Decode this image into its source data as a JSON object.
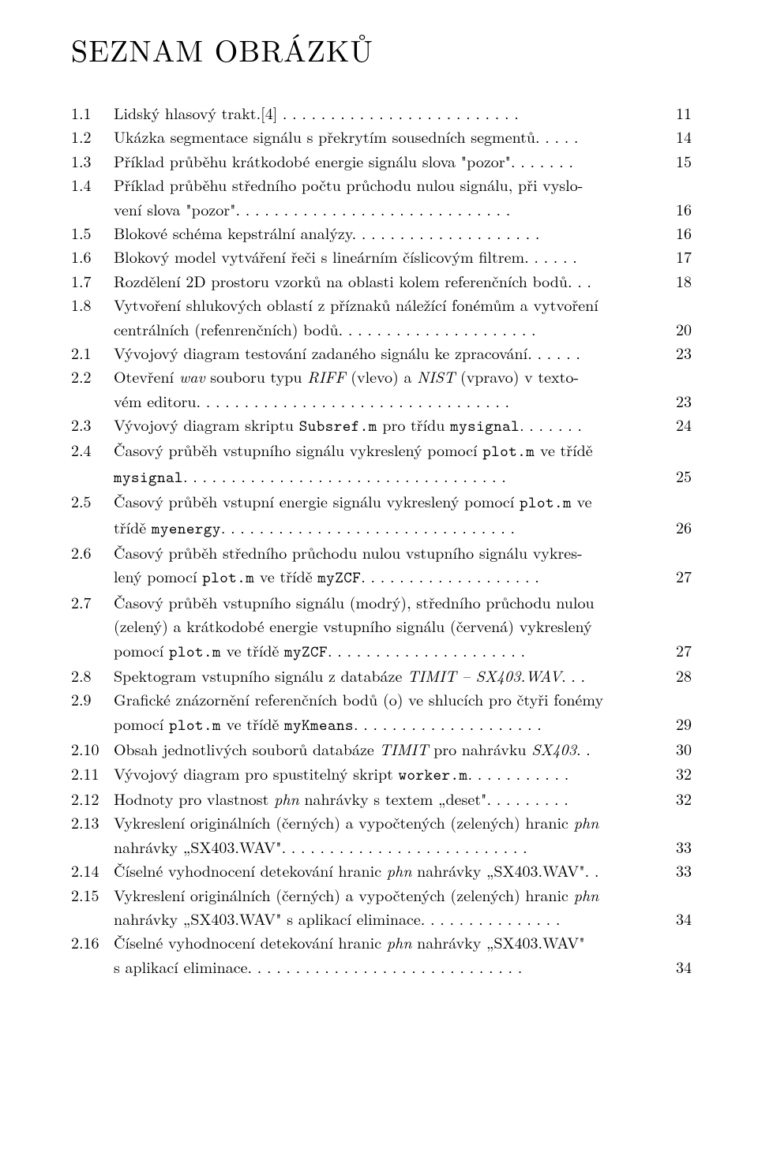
{
  "title": "SEZNAM OBRÁZKŮ",
  "entries": [
    {
      "num": "1.1",
      "lines": [
        "Lidský hlasový trakt.[4] . . . . . . . . . . . . . . . . . . . . . . . . ."
      ],
      "page": "11"
    },
    {
      "num": "1.2",
      "lines": [
        "Ukázka segmentace signálu s překrytím sousedních segmentů. . . . ."
      ],
      "page": "14"
    },
    {
      "num": "1.3",
      "lines": [
        "Příklad průběhu krátkodobé energie signálu slova \"pozor\". . . . . . ."
      ],
      "page": "15"
    },
    {
      "num": "1.4",
      "lines": [
        "Příklad průběhu středního počtu průchodu nulou signálu, při vyslo-",
        "vení slova \"pozor\". . . . . . . . . . . . . . . . . . . . . . . . . . . . ."
      ],
      "page": "16"
    },
    {
      "num": "1.5",
      "lines": [
        "Blokové schéma kepstrální analýzy. . . . . . . . . . . . . . . . . . . ."
      ],
      "page": "16"
    },
    {
      "num": "1.6",
      "lines": [
        "Blokový model vytváření řeči s lineárním číslicovým filtrem. . . . . ."
      ],
      "page": "17"
    },
    {
      "num": "1.7",
      "lines": [
        "Rozdělení 2D prostoru vzorků na oblasti kolem referenčních bodů. . ."
      ],
      "page": "18"
    },
    {
      "num": "1.8",
      "lines": [
        "Vytvoření shlukových oblastí z příznaků náležící fonémům a vytvoření",
        "centrálních (refenrenčních) bodů. . . . . . . . . . . . . . . . . . . . ."
      ],
      "page": "20"
    },
    {
      "num": "2.1",
      "lines": [
        "Vývojový diagram testování zadaného signálu ke zpracování. . . . . ."
      ],
      "page": "23"
    },
    {
      "num": "2.2",
      "lines": [
        "Otevření <i>wav</i> souboru typu <i>RIFF</i> (vlevo) a <i>NIST</i> (vpravo) v texto-",
        "vém editoru. . . . . . . . . . . . . . . . . . . . . . . . . . . . . . . . ."
      ],
      "page": "23"
    },
    {
      "num": "2.3",
      "lines": [
        "Vývojový diagram skriptu <m>Subsref.m</m> pro třídu <m>mysignal</m>. . . . . . ."
      ],
      "page": "24"
    },
    {
      "num": "2.4",
      "lines": [
        "Časový průběh vstupního signálu vykreslený pomocí <m>plot.m</m> ve třídě",
        "<m>mysignal</m>. . . . . . . . . . . . . . . . . . . . . . . . . . . . . . . . . ."
      ],
      "page": "25"
    },
    {
      "num": "2.5",
      "lines": [
        "Časový průběh vstupní energie signálu vykreslený pomocí <m>plot.m</m> ve",
        "třídě <m>myenergy</m>. . . . . . . . . . . . . . . . . . . . . . . . . . . . . . ."
      ],
      "page": "26"
    },
    {
      "num": "2.6",
      "lines": [
        "Časový průběh středního průchodu nulou vstupního signálu vykres-",
        "lený pomocí <m>plot.m</m> ve třídě <m>myZCF</m>. . . . . . . . . . . . . . . . . . ."
      ],
      "page": "27"
    },
    {
      "num": "2.7",
      "lines": [
        "Časový průběh vstupního signálu (modrý), středního průchodu nulou",
        "(zelený) a krátkodobé energie vstupního signálu (červená) vykreslený",
        "pomocí <m>plot.m</m> ve třídě <m>myZCF</m>. . . . . . . . . . . . . . . . . . . . ."
      ],
      "page": "27"
    },
    {
      "num": "2.8",
      "lines": [
        "Spektogram vstupního signálu z databáze <i>TIMIT – SX403.WAV</i>. . ."
      ],
      "page": "28"
    },
    {
      "num": "2.9",
      "lines": [
        "Grafické znázornění referenčních bodů (o) ve shlucích pro čtyři fonémy",
        "pomocí <m>plot.m</m> ve třídě <m>myKmeans</m>. . . . . . . . . . . . . . . . . . . ."
      ],
      "page": "29"
    },
    {
      "num": "2.10",
      "lines": [
        "Obsah jednotlivých souborů databáze <i>TIMIT</i> pro nahrávku <i>SX403</i>. ."
      ],
      "page": "30"
    },
    {
      "num": "2.11",
      "lines": [
        "Vývojový diagram pro spustitelný skript <m>worker.m</m>. . . . . . . . . . ."
      ],
      "page": "32"
    },
    {
      "num": "2.12",
      "lines": [
        "Hodnoty pro vlastnost <i>phn</i> nahrávky s textem „deset\". . . . . . . . ."
      ],
      "page": "32"
    },
    {
      "num": "2.13",
      "lines": [
        "Vykreslení originálních (černých) a vypočtených (zelených) hranic <i>phn</i>",
        "nahrávky „SX403.WAV\". . . . . . . . . . . . . . . . . . . . . . . . . ."
      ],
      "page": "33"
    },
    {
      "num": "2.14",
      "lines": [
        "Číselné vyhodnocení detekování hranic <i>phn</i> nahrávky „SX403.WAV\". ."
      ],
      "page": "33"
    },
    {
      "num": "2.15",
      "lines": [
        "Vykreslení originálních (černých) a vypočtených (zelených) hranic <i>phn</i>",
        "nahrávky „SX403.WAV\" s aplikací eliminace. . . . . . . . . . . . . . ."
      ],
      "page": "34"
    },
    {
      "num": "2.16",
      "lines": [
        "Číselné vyhodnocení detekování hranic <i>phn</i> nahrávky „SX403.WAV\"",
        "s aplikací eliminace. . . . . . . . . . . . . . . . . . . . . . . . . . . . ."
      ],
      "page": "34"
    }
  ]
}
